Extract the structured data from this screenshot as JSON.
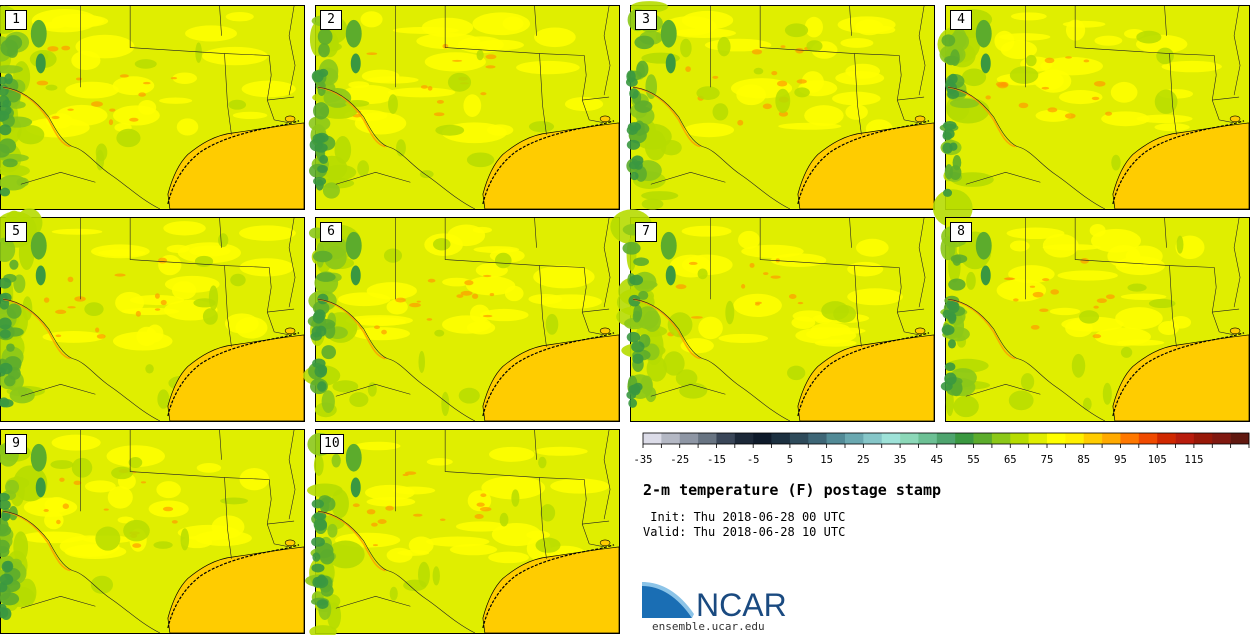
{
  "stamps": [
    {
      "label": "1"
    },
    {
      "label": "2"
    },
    {
      "label": "3"
    },
    {
      "label": "4"
    },
    {
      "label": "5"
    },
    {
      "label": "6"
    },
    {
      "label": "7"
    },
    {
      "label": "8"
    },
    {
      "label": "9"
    },
    {
      "label": "10"
    }
  ],
  "title": "2-m temperature (F) postage stamp",
  "init_text": " Init: Thu 2018-06-28 00 UTC",
  "valid_text": "Valid: Thu 2018-06-28 10 UTC",
  "logo_text": "NCAR",
  "url": "ensemble.ucar.edu",
  "colorbar": {
    "tick_labels": [
      "-35",
      "-25",
      "-15",
      "-5",
      "5",
      "15",
      "25",
      "35",
      "45",
      "55",
      "65",
      "75",
      "85",
      "95",
      "105",
      "115"
    ],
    "colors": [
      "#dcdce8",
      "#b4b8c4",
      "#8e96a4",
      "#687482",
      "#3a4658",
      "#1c2838",
      "#0e1a2a",
      "#1c3040",
      "#2e4a5a",
      "#3e6676",
      "#528a96",
      "#6aa8b0",
      "#86c6c8",
      "#9ee2d8",
      "#8cd8b8",
      "#6cc094",
      "#4ea46e",
      "#3a9840",
      "#5cac2c",
      "#8cc818",
      "#b6dc00",
      "#e0ee00",
      "#ffff00",
      "#fff000",
      "#ffcc00",
      "#ffaa00",
      "#ff7800",
      "#f04a00",
      "#d02800",
      "#b81c0c",
      "#981808",
      "#801810",
      "#601810"
    ]
  },
  "colors": {
    "base": "#e0ee00",
    "warm": "#ffff00",
    "hot": "#ffd800",
    "gulf": "#ffcc00",
    "cool1": "#b6dc00",
    "cool2": "#8cc818",
    "cool3": "#5cac2c",
    "cool4": "#3a9840",
    "ridge": "#ff9a00"
  }
}
